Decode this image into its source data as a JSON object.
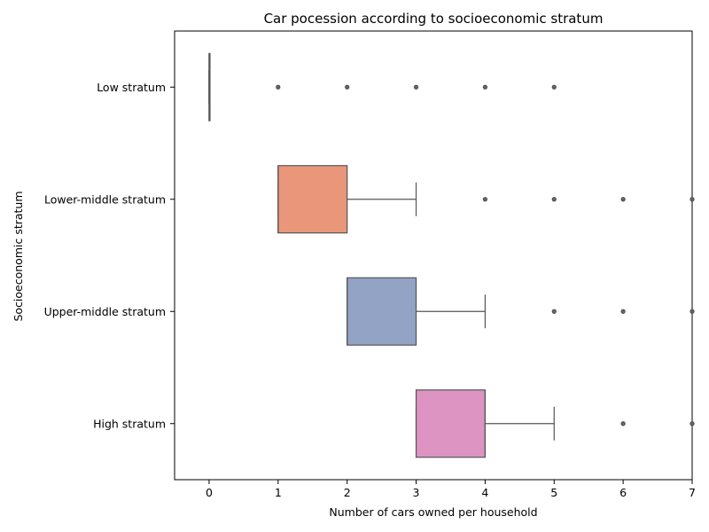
{
  "chart_data": {
    "type": "boxplot",
    "orientation": "horizontal",
    "title": "Car pocession according to socioeconomic stratum",
    "xlabel": "Number of cars owned per household",
    "ylabel": "Socioeconomic stratum",
    "xlim": [
      -0.5,
      7
    ],
    "xticks": [
      0,
      1,
      2,
      3,
      4,
      5,
      6,
      7
    ],
    "grid": false,
    "categories": [
      "Low stratum",
      "Lower-middle stratum",
      "Upper-middle stratum",
      "High stratum"
    ],
    "series": [
      {
        "category": "Low stratum",
        "min": 0,
        "q1": 0,
        "median": 0,
        "q3": 0,
        "max": 0,
        "outliers": [
          1,
          2,
          3,
          4,
          5
        ],
        "color": "#66c2a5"
      },
      {
        "category": "Lower-middle stratum",
        "min": 1,
        "q1": 1,
        "median": 1,
        "q3": 2,
        "max": 3,
        "outliers": [
          4,
          5,
          6,
          7
        ],
        "color": "#e9967a"
      },
      {
        "category": "Upper-middle stratum",
        "min": 2,
        "q1": 2,
        "median": 2,
        "q3": 3,
        "max": 4,
        "outliers": [
          5,
          6,
          7
        ],
        "color": "#93a3c6"
      },
      {
        "category": "High stratum",
        "min": 3,
        "q1": 3,
        "median": 4,
        "q3": 4,
        "max": 5,
        "outliers": [
          6,
          7
        ],
        "color": "#dd94c2"
      }
    ],
    "line_color": "#555555"
  }
}
